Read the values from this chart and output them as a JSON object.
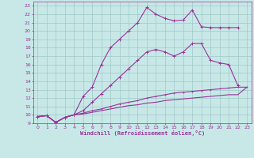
{
  "xlabel": "Windchill (Refroidissement éolien,°C)",
  "xlim": [
    -0.5,
    23.5
  ],
  "ylim": [
    9,
    23.5
  ],
  "xticks": [
    0,
    1,
    2,
    3,
    4,
    5,
    6,
    7,
    8,
    9,
    10,
    11,
    12,
    13,
    14,
    15,
    16,
    17,
    18,
    19,
    20,
    21,
    22,
    23
  ],
  "yticks": [
    9,
    10,
    11,
    12,
    13,
    14,
    15,
    16,
    17,
    18,
    19,
    20,
    21,
    22,
    23
  ],
  "bg_color": "#c8e8e8",
  "grid_color": "#a0c8c8",
  "line_color": "#993399",
  "line1_x": [
    0,
    1,
    2,
    3,
    4,
    5,
    6,
    7,
    8,
    9,
    10,
    11,
    12,
    13,
    14,
    15,
    16,
    17,
    18,
    19,
    20,
    21,
    22
  ],
  "line1_y": [
    9.8,
    9.9,
    9.1,
    9.7,
    10.0,
    12.2,
    13.3,
    16.0,
    18.0,
    19.0,
    20.0,
    21.0,
    22.8,
    22.0,
    21.5,
    21.2,
    21.3,
    22.5,
    20.5,
    20.4,
    20.4,
    20.4,
    20.4
  ],
  "line2_x": [
    0,
    1,
    2,
    3,
    4,
    5,
    6,
    7,
    8,
    9,
    10,
    11,
    12,
    13,
    14,
    15,
    16,
    17,
    18,
    19,
    20,
    21,
    22
  ],
  "line2_y": [
    9.8,
    9.9,
    9.1,
    9.7,
    10.0,
    10.5,
    11.5,
    12.5,
    13.5,
    14.5,
    15.5,
    16.5,
    17.5,
    17.8,
    17.5,
    17.0,
    17.5,
    18.5,
    18.5,
    16.5,
    16.2,
    16.0,
    13.5
  ],
  "line3_x": [
    0,
    1,
    2,
    3,
    4,
    5,
    6,
    7,
    8,
    9,
    10,
    11,
    12,
    13,
    14,
    15,
    16,
    17,
    18,
    19,
    20,
    21,
    22,
    23
  ],
  "line3_y": [
    9.8,
    9.9,
    9.1,
    9.7,
    10.0,
    10.2,
    10.5,
    10.7,
    11.0,
    11.3,
    11.5,
    11.7,
    12.0,
    12.2,
    12.4,
    12.6,
    12.7,
    12.8,
    12.9,
    13.0,
    13.1,
    13.2,
    13.3,
    13.3
  ],
  "line4_x": [
    0,
    1,
    2,
    3,
    4,
    5,
    6,
    7,
    8,
    9,
    10,
    11,
    12,
    13,
    14,
    15,
    16,
    17,
    18,
    19,
    20,
    21,
    22,
    23
  ],
  "line4_y": [
    9.8,
    9.9,
    9.1,
    9.7,
    10.0,
    10.1,
    10.3,
    10.5,
    10.7,
    10.9,
    11.1,
    11.2,
    11.4,
    11.5,
    11.7,
    11.8,
    11.9,
    12.0,
    12.1,
    12.2,
    12.3,
    12.4,
    12.4,
    13.3
  ]
}
